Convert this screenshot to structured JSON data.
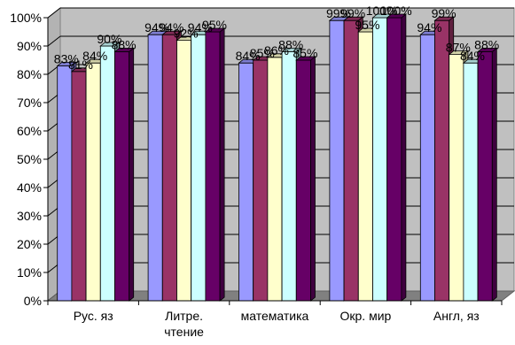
{
  "chart_data": {
    "type": "bar",
    "title": "",
    "xlabel": "",
    "ylabel": "",
    "ylim": [
      0,
      100
    ],
    "y_ticks": [
      "0%",
      "10%",
      "20%",
      "30%",
      "40%",
      "50%",
      "60%",
      "70%",
      "80%",
      "90%",
      "100%"
    ],
    "grid": true,
    "three_d": true,
    "categories": [
      [
        "Рус. яз"
      ],
      [
        "Литре.",
        "чтение"
      ],
      [
        "математика"
      ],
      [
        "Окр. мир"
      ],
      [
        "Англ, яз"
      ]
    ],
    "series": [
      {
        "color": "#9999ff",
        "values": [
          83,
          94,
          84,
          99,
          94
        ],
        "labels": [
          "83%",
          "94%",
          "84%",
          "99%",
          "94%"
        ]
      },
      {
        "color": "#993366",
        "values": [
          81,
          94,
          85,
          99,
          99
        ],
        "labels": [
          "81%",
          "94%",
          "85%",
          "99%",
          "99%"
        ]
      },
      {
        "color": "#ffffcc",
        "values": [
          84,
          92,
          86,
          95,
          87
        ],
        "labels": [
          "84%",
          "92%",
          "86%",
          "95%",
          "87%"
        ]
      },
      {
        "color": "#ccffff",
        "values": [
          90,
          94,
          88,
          100,
          84
        ],
        "labels": [
          "90%",
          "94%",
          "88%",
          "100%",
          "84%"
        ]
      },
      {
        "color": "#660066",
        "values": [
          88,
          95,
          85,
          100,
          88
        ],
        "labels": [
          "88%",
          "95%",
          "85%",
          "100%",
          "88%"
        ]
      }
    ]
  }
}
